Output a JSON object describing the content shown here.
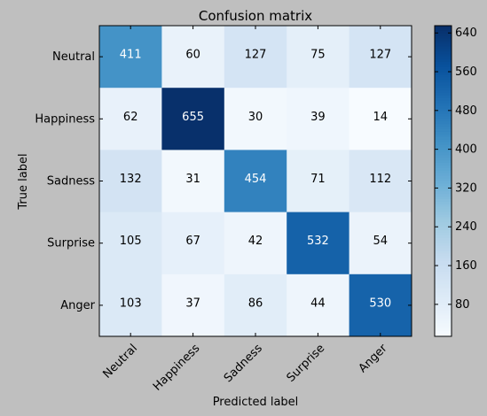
{
  "chart_data": {
    "type": "heatmap",
    "title": "Confusion matrix",
    "xlabel": "Predicted label",
    "ylabel": "True label",
    "x_categories": [
      "Neutral",
      "Happiness",
      "Sadness",
      "Surprise",
      "Anger"
    ],
    "y_categories": [
      "Neutral",
      "Happiness",
      "Sadness",
      "Surprise",
      "Anger"
    ],
    "values": [
      [
        411,
        60,
        127,
        75,
        127
      ],
      [
        62,
        655,
        30,
        39,
        14
      ],
      [
        132,
        31,
        454,
        71,
        112
      ],
      [
        105,
        67,
        42,
        532,
        54
      ],
      [
        103,
        37,
        86,
        44,
        530
      ]
    ],
    "colormap": "Blues",
    "color_range": [
      14,
      655
    ],
    "colorbar_ticks": [
      80,
      160,
      240,
      320,
      400,
      480,
      560,
      640
    ],
    "grid": false
  }
}
